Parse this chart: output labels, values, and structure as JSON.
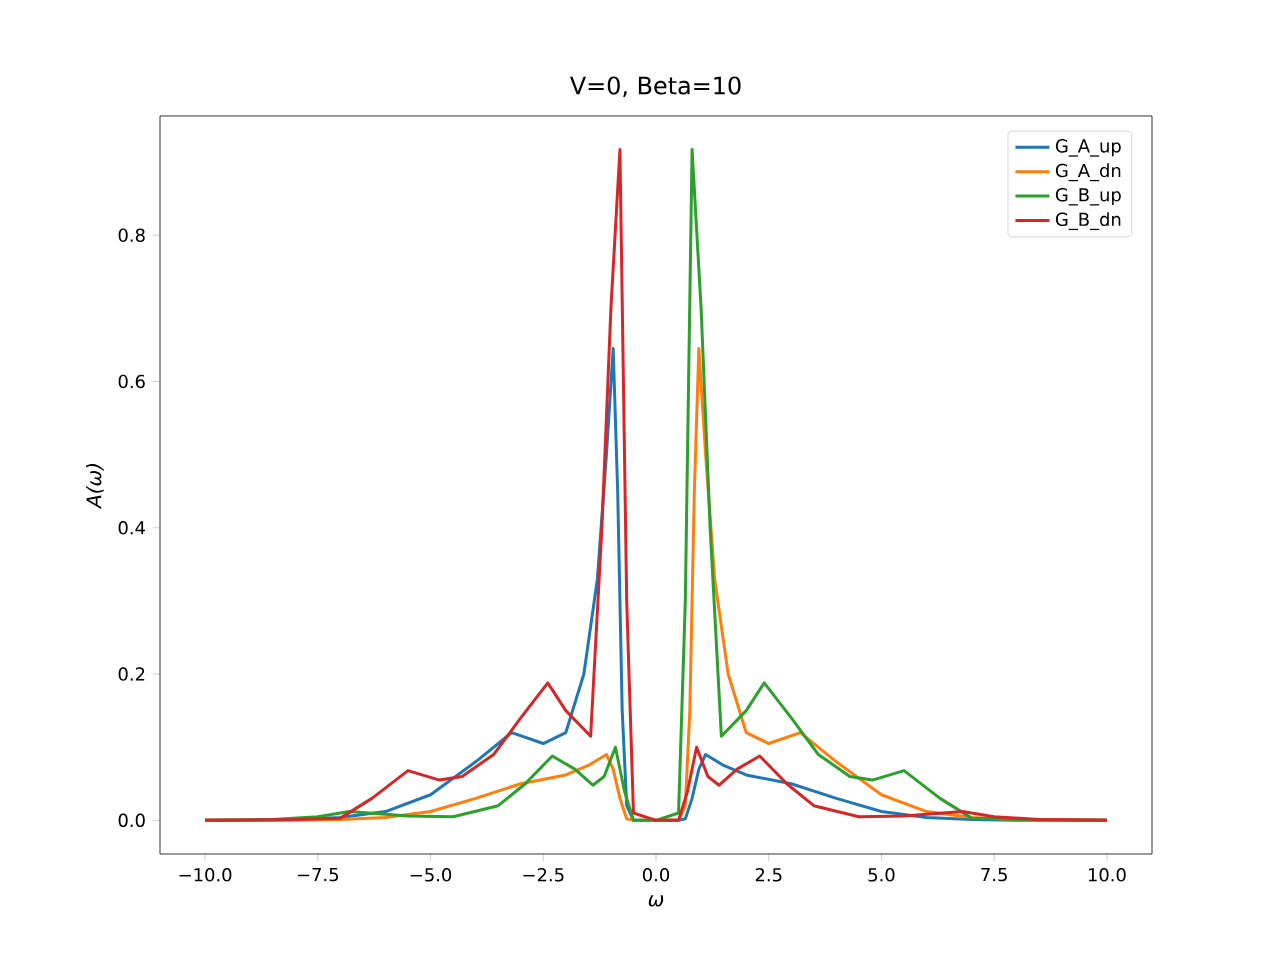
{
  "chart_data": {
    "type": "line",
    "title": "V=0, Beta=10",
    "xlabel": "ω",
    "ylabel": "*A*(ω)",
    "xlim": [
      -11,
      11
    ],
    "ylim": [
      -0.046,
      0.963
    ],
    "xticks": [
      {
        "value": -10,
        "label": "−10.0"
      },
      {
        "value": -7.5,
        "label": "−7.5"
      },
      {
        "value": -5,
        "label": "−5.0"
      },
      {
        "value": -2.5,
        "label": "−2.5"
      },
      {
        "value": 0,
        "label": "0.0"
      },
      {
        "value": 2.5,
        "label": "2.5"
      },
      {
        "value": 5,
        "label": "5.0"
      },
      {
        "value": 7.5,
        "label": "7.5"
      },
      {
        "value": 10,
        "label": "10.0"
      }
    ],
    "yticks": [
      {
        "value": 0,
        "label": "0.0"
      },
      {
        "value": 0.2,
        "label": "0.2"
      },
      {
        "value": 0.4,
        "label": "0.4"
      },
      {
        "value": 0.6,
        "label": "0.6"
      },
      {
        "value": 0.8,
        "label": "0.8"
      }
    ],
    "legend": "top right",
    "grid": false,
    "marker": "none",
    "line_style": "solid",
    "series": [
      {
        "name": "G_A_up",
        "color": "#1f77b4",
        "x": [
          -10,
          -8,
          -7,
          -6,
          -5,
          -4,
          -3.2,
          -2.5,
          -2,
          -1.6,
          -1.3,
          -1.1,
          -0.95,
          -0.85,
          -0.75,
          -0.65,
          -0.5,
          0,
          0.5,
          0.65,
          0.8,
          0.95,
          1.1,
          1.5,
          2,
          3,
          4,
          5,
          6,
          7,
          8,
          10
        ],
        "values": [
          0,
          0.001,
          0.004,
          0.012,
          0.035,
          0.08,
          0.12,
          0.105,
          0.12,
          0.2,
          0.33,
          0.5,
          0.645,
          0.45,
          0.15,
          0.02,
          0,
          0,
          0,
          0.002,
          0.03,
          0.07,
          0.09,
          0.075,
          0.062,
          0.05,
          0.03,
          0.012,
          0.004,
          0.001,
          0,
          0
        ]
      },
      {
        "name": "G_A_dn",
        "color": "#ff7f0e",
        "x": [
          -10,
          -8,
          -7,
          -6,
          -5,
          -4,
          -3,
          -2,
          -1.5,
          -1.1,
          -0.95,
          -0.8,
          -0.65,
          -0.5,
          0,
          0.5,
          0.65,
          0.75,
          0.85,
          0.95,
          1.1,
          1.3,
          1.6,
          2,
          2.5,
          3.2,
          4,
          5,
          6,
          7,
          8,
          10
        ],
        "values": [
          0,
          0,
          0.001,
          0.004,
          0.012,
          0.03,
          0.05,
          0.062,
          0.075,
          0.09,
          0.07,
          0.03,
          0.002,
          0,
          0,
          0,
          0.02,
          0.15,
          0.45,
          0.645,
          0.5,
          0.33,
          0.2,
          0.12,
          0.105,
          0.12,
          0.08,
          0.035,
          0.012,
          0.004,
          0.001,
          0
        ]
      },
      {
        "name": "G_B_up",
        "color": "#2ca02c",
        "x": [
          -10,
          -8.5,
          -7.5,
          -6.8,
          -5.5,
          -4.5,
          -3.5,
          -2.9,
          -2.3,
          -1.8,
          -1.4,
          -1.15,
          -0.9,
          -0.7,
          -0.5,
          0,
          0.5,
          0.65,
          0.8,
          1,
          1.2,
          1.45,
          2,
          2.4,
          3,
          3.6,
          4.3,
          4.8,
          5.5,
          6.3,
          7,
          8,
          10
        ],
        "values": [
          0,
          0.001,
          0.005,
          0.012,
          0.006,
          0.005,
          0.02,
          0.05,
          0.088,
          0.07,
          0.048,
          0.06,
          0.1,
          0.04,
          0,
          0,
          0.01,
          0.3,
          0.917,
          0.7,
          0.4,
          0.115,
          0.15,
          0.188,
          0.14,
          0.09,
          0.06,
          0.055,
          0.068,
          0.03,
          0.003,
          0.001,
          0
        ]
      },
      {
        "name": "G_B_dn",
        "color": "#d62728",
        "x": [
          -10,
          -8,
          -7,
          -6.3,
          -5.5,
          -4.8,
          -4.3,
          -3.6,
          -3,
          -2.4,
          -2,
          -1.45,
          -1.2,
          -1,
          -0.8,
          -0.65,
          -0.5,
          0,
          0.5,
          0.7,
          0.9,
          1.15,
          1.4,
          1.8,
          2.3,
          2.9,
          3.5,
          4.5,
          5.5,
          6.8,
          7.5,
          8.5,
          10
        ],
        "values": [
          0,
          0.001,
          0.003,
          0.03,
          0.068,
          0.055,
          0.06,
          0.09,
          0.14,
          0.188,
          0.15,
          0.115,
          0.4,
          0.7,
          0.917,
          0.3,
          0.01,
          0,
          0,
          0.04,
          0.1,
          0.06,
          0.048,
          0.07,
          0.088,
          0.05,
          0.02,
          0.005,
          0.006,
          0.012,
          0.005,
          0.001,
          0
        ]
      }
    ]
  }
}
